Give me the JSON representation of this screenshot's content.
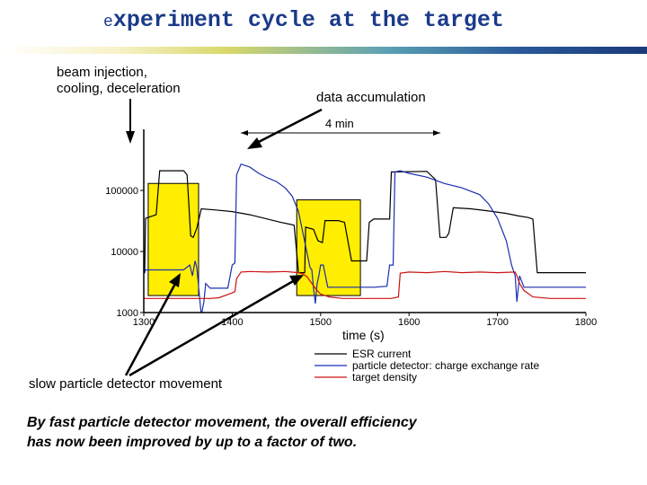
{
  "slide": {
    "title_first": "e",
    "title_rest": "xperiment cycle at the target",
    "annotations": {
      "injection": [
        "beam injection,",
        "cooling, deceleration"
      ],
      "accumulation": "data accumulation",
      "slow_movement": "slow particle detector movement"
    },
    "conclusion": [
      "By fast particle detector movement, the overall efficiency",
      "has now been improved by up to a factor of two."
    ]
  },
  "colors": {
    "title": "#1a3a8a",
    "esr": "#000000",
    "detector": "#1a2fb0",
    "target": "#cc1111",
    "highlight": "#ffee00"
  },
  "chart_data": {
    "type": "line",
    "title": "",
    "xlabel": "time (s)",
    "ylabel": "",
    "yscale": "log",
    "xlim": [
      1300,
      1800
    ],
    "ylim": [
      1000,
      1000000
    ],
    "x_ticks": [
      "1300",
      "1400",
      "1500",
      "1600",
      "1700",
      "1800"
    ],
    "y_ticks": [
      "1000",
      "10000",
      "100000"
    ],
    "period_label": "4 min",
    "highlight_regions": [
      [
        1305,
        1362
      ],
      [
        1473,
        1545
      ]
    ],
    "series": [
      {
        "name": "ESR current",
        "color": "#000000",
        "points": [
          [
            1300,
            4500
          ],
          [
            1301,
            4500
          ],
          [
            1302,
            35000
          ],
          [
            1314,
            40000
          ],
          [
            1318,
            210000
          ],
          [
            1345,
            210000
          ],
          [
            1349,
            180000
          ],
          [
            1353,
            18000
          ],
          [
            1356,
            17000
          ],
          [
            1360,
            24000
          ],
          [
            1365,
            50000
          ],
          [
            1380,
            48000
          ],
          [
            1400,
            45000
          ],
          [
            1420,
            40000
          ],
          [
            1440,
            34000
          ],
          [
            1455,
            30000
          ],
          [
            1465,
            28000
          ],
          [
            1470,
            27000
          ],
          [
            1475,
            4500
          ],
          [
            1482,
            4500
          ],
          [
            1483,
            25000
          ],
          [
            1492,
            23000
          ],
          [
            1497,
            15000
          ],
          [
            1502,
            14000
          ],
          [
            1505,
            32000
          ],
          [
            1520,
            32000
          ],
          [
            1527,
            30000
          ],
          [
            1535,
            7000
          ],
          [
            1540,
            7000
          ],
          [
            1545,
            7000
          ],
          [
            1552,
            7000
          ],
          [
            1555,
            30000
          ],
          [
            1560,
            34000
          ],
          [
            1578,
            34000
          ],
          [
            1580,
            200000
          ],
          [
            1620,
            205000
          ],
          [
            1630,
            150000
          ],
          [
            1635,
            17000
          ],
          [
            1642,
            17000
          ],
          [
            1645,
            20000
          ],
          [
            1650,
            52000
          ],
          [
            1670,
            50000
          ],
          [
            1690,
            46000
          ],
          [
            1710,
            42000
          ],
          [
            1725,
            38000
          ],
          [
            1735,
            36000
          ],
          [
            1740,
            34000
          ],
          [
            1745,
            4500
          ],
          [
            1800,
            4500
          ]
        ]
      },
      {
        "name": "particle detector: charge exchange rate",
        "color": "#1a2fb0",
        "points": [
          [
            1300,
            4500
          ],
          [
            1301,
            4500
          ],
          [
            1302,
            5000
          ],
          [
            1345,
            5000
          ],
          [
            1352,
            6000
          ],
          [
            1355,
            4000
          ],
          [
            1358,
            7000
          ],
          [
            1360,
            5500
          ],
          [
            1365,
            900
          ],
          [
            1368,
            1500
          ],
          [
            1370,
            3000
          ],
          [
            1375,
            2500
          ],
          [
            1385,
            2500
          ],
          [
            1395,
            2500
          ],
          [
            1400,
            6000
          ],
          [
            1403,
            6500
          ],
          [
            1405,
            180000
          ],
          [
            1410,
            270000
          ],
          [
            1420,
            240000
          ],
          [
            1430,
            190000
          ],
          [
            1440,
            160000
          ],
          [
            1450,
            140000
          ],
          [
            1460,
            110000
          ],
          [
            1468,
            80000
          ],
          [
            1475,
            45000
          ],
          [
            1480,
            20000
          ],
          [
            1485,
            9000
          ],
          [
            1488,
            5500
          ],
          [
            1490,
            5000
          ],
          [
            1492,
            2500
          ],
          [
            1494,
            1400
          ],
          [
            1496,
            3000
          ],
          [
            1498,
            4000
          ],
          [
            1500,
            6000
          ],
          [
            1503,
            6000
          ],
          [
            1508,
            2600
          ],
          [
            1560,
            2600
          ],
          [
            1575,
            2700
          ],
          [
            1578,
            6000
          ],
          [
            1582,
            6000
          ],
          [
            1584,
            200000
          ],
          [
            1590,
            210000
          ],
          [
            1600,
            190000
          ],
          [
            1620,
            165000
          ],
          [
            1640,
            130000
          ],
          [
            1660,
            110000
          ],
          [
            1680,
            85000
          ],
          [
            1690,
            60000
          ],
          [
            1700,
            35000
          ],
          [
            1710,
            15000
          ],
          [
            1716,
            6000
          ],
          [
            1720,
            4000
          ],
          [
            1722,
            1500
          ],
          [
            1725,
            4000
          ],
          [
            1730,
            2600
          ],
          [
            1780,
            2600
          ],
          [
            1800,
            2600
          ]
        ]
      },
      {
        "name": "target density",
        "color": "#cc1111",
        "points": [
          [
            1300,
            1700
          ],
          [
            1360,
            1700
          ],
          [
            1375,
            1700
          ],
          [
            1385,
            1750
          ],
          [
            1400,
            2100
          ],
          [
            1403,
            2200
          ],
          [
            1405,
            3600
          ],
          [
            1410,
            4600
          ],
          [
            1420,
            4700
          ],
          [
            1440,
            4600
          ],
          [
            1460,
            4700
          ],
          [
            1475,
            4500
          ],
          [
            1480,
            4300
          ],
          [
            1485,
            3800
          ],
          [
            1490,
            3000
          ],
          [
            1495,
            2400
          ],
          [
            1500,
            2000
          ],
          [
            1510,
            1800
          ],
          [
            1525,
            1700
          ],
          [
            1580,
            1700
          ],
          [
            1588,
            1800
          ],
          [
            1590,
            4400
          ],
          [
            1600,
            4600
          ],
          [
            1620,
            4500
          ],
          [
            1640,
            4700
          ],
          [
            1660,
            4500
          ],
          [
            1680,
            4600
          ],
          [
            1700,
            4500
          ],
          [
            1720,
            4600
          ],
          [
            1722,
            4000
          ],
          [
            1725,
            3000
          ],
          [
            1730,
            2300
          ],
          [
            1740,
            1800
          ],
          [
            1760,
            1700
          ],
          [
            1780,
            1700
          ],
          [
            1800,
            1700
          ]
        ]
      }
    ]
  }
}
